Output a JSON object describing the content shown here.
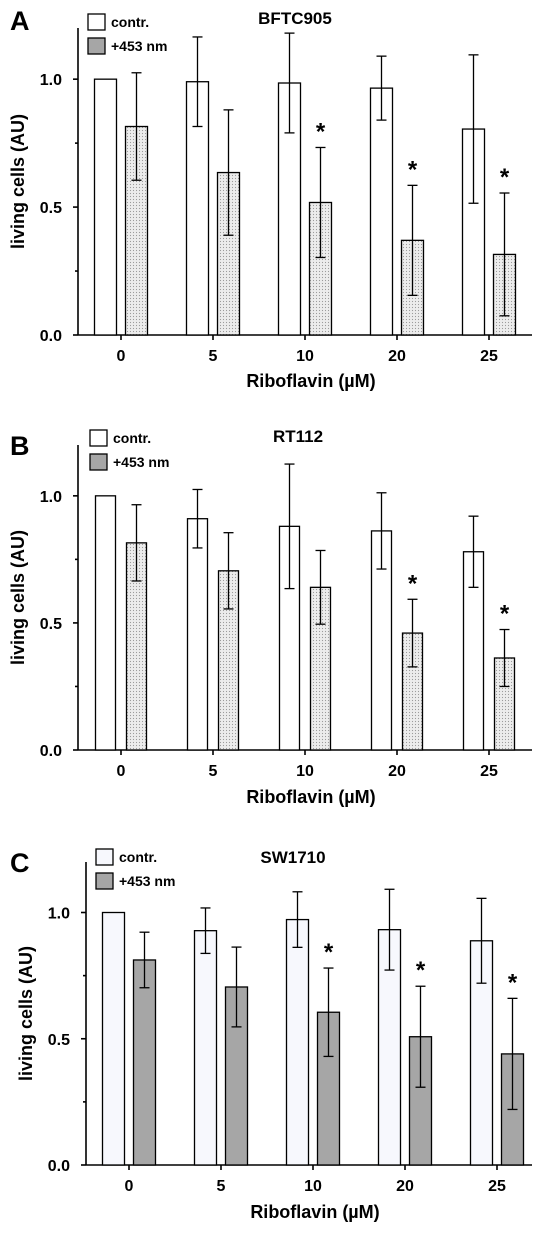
{
  "chart_data": [
    {
      "type": "bar",
      "panel": "A",
      "title": "BFTC905",
      "categories": [
        "0",
        "5",
        "10",
        "20",
        "25"
      ],
      "series": [
        {
          "name": "contr.",
          "values": [
            1.0,
            0.99,
            0.985,
            0.965,
            0.805
          ],
          "errors": [
            0,
            0.175,
            0.195,
            0.125,
            0.29
          ]
        },
        {
          "name": "+453 nm",
          "values": [
            0.815,
            0.635,
            0.518,
            0.37,
            0.315
          ],
          "errors": [
            0.21,
            0.245,
            0.215,
            0.215,
            0.24
          ]
        }
      ],
      "significant": [
        false,
        false,
        true,
        true,
        true
      ],
      "annotation": "*",
      "xlabel": "Riboflavin (µM)",
      "ylabel": "living cells (AU)",
      "ylim": [
        0,
        1.2
      ],
      "yticks": [
        "0.0",
        "0.5",
        "1.0"
      ],
      "legend_position": "top-left",
      "colors": {
        "contr": "#ffffff",
        "treated": "#ececec",
        "legend_treated": "#a6a6a6"
      }
    },
    {
      "type": "bar",
      "panel": "B",
      "title": "RT112",
      "categories": [
        "0",
        "5",
        "10",
        "20",
        "25"
      ],
      "series": [
        {
          "name": "contr.",
          "values": [
            1.0,
            0.91,
            0.88,
            0.862,
            0.78
          ],
          "errors": [
            0,
            0.115,
            0.245,
            0.15,
            0.14
          ]
        },
        {
          "name": "+453 nm",
          "values": [
            0.815,
            0.705,
            0.64,
            0.46,
            0.362
          ],
          "errors": [
            0.15,
            0.15,
            0.145,
            0.133,
            0.112
          ]
        }
      ],
      "significant": [
        false,
        false,
        false,
        true,
        true
      ],
      "annotation": "*",
      "xlabel": "Riboflavin (µM)",
      "ylabel": "living cells (AU)",
      "ylim": [
        0,
        1.2
      ],
      "yticks": [
        "0.0",
        "0.5",
        "1.0"
      ],
      "legend_position": "top-left",
      "colors": {
        "contr": "#ffffff",
        "treated": "#ececec",
        "legend_treated": "#a6a6a6"
      }
    },
    {
      "type": "bar",
      "panel": "C",
      "title": "SW1710",
      "categories": [
        "0",
        "5",
        "10",
        "20",
        "25"
      ],
      "series": [
        {
          "name": "contr.",
          "values": [
            1.0,
            0.928,
            0.972,
            0.932,
            0.888
          ],
          "errors": [
            0,
            0.09,
            0.11,
            0.16,
            0.168
          ]
        },
        {
          "name": "+453 nm",
          "values": [
            0.812,
            0.705,
            0.605,
            0.508,
            0.44
          ],
          "errors": [
            0.11,
            0.158,
            0.175,
            0.2,
            0.22
          ]
        }
      ],
      "significant": [
        false,
        false,
        true,
        true,
        true
      ],
      "annotation": "*",
      "xlabel": "Riboflavin (µM)",
      "ylabel": "living cells (AU)",
      "ylim": [
        0,
        1.2
      ],
      "yticks": [
        "0.0",
        "0.5",
        "1.0"
      ],
      "legend_position": "top-left",
      "colors": {
        "contr": "#f7f8fd",
        "treated": "#a6a6a6",
        "legend_treated": "#a6a6a6"
      }
    }
  ]
}
